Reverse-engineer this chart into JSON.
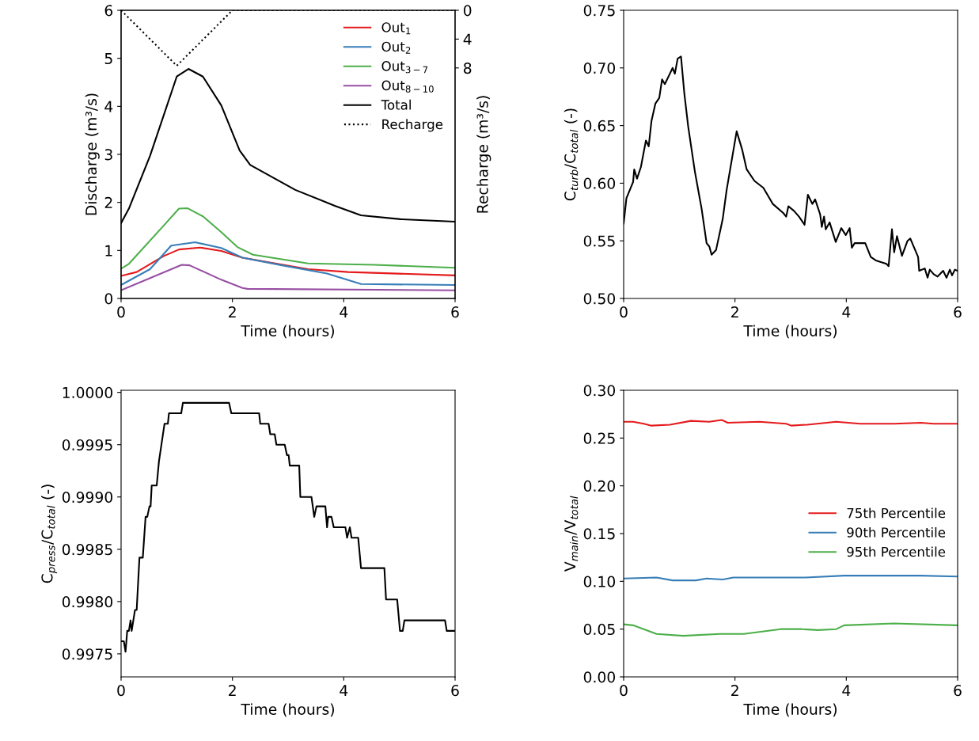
{
  "chart_data": [
    {
      "type": "line",
      "xlabel": "Time (hours)",
      "ylabel": "Discharge (m³/s)",
      "y2label": "Recharge (m³/s)",
      "xlim": [
        0,
        6
      ],
      "xticks": [
        0,
        2,
        4,
        6
      ],
      "ylim": [
        0,
        6
      ],
      "yticks": [
        0,
        1,
        2,
        3,
        4,
        5,
        6
      ],
      "y2lim": [
        40,
        0
      ],
      "y2ticks": [
        0,
        4,
        8
      ],
      "legend": "top right",
      "grid": false,
      "series": [
        {
          "name": "Out$_{1}$",
          "color": "#e41a1c",
          "x": [
            0,
            0.28,
            0.76,
            1.04,
            1.42,
            1.8,
            2.18,
            3.36,
            4.08,
            6
          ],
          "values": [
            0.47,
            0.55,
            0.88,
            1.02,
            1.06,
            0.99,
            0.85,
            0.61,
            0.55,
            0.48
          ]
        },
        {
          "name": "Out$_{2}$",
          "color": "#377eb8",
          "x": [
            0,
            0.52,
            0.9,
            1.33,
            1.8,
            2.18,
            2.89,
            3.7,
            4.31,
            6
          ],
          "values": [
            0.28,
            0.61,
            1.1,
            1.17,
            1.05,
            0.85,
            0.69,
            0.52,
            0.3,
            0.28
          ]
        },
        {
          "name": "Out$_{3−7}$",
          "color": "#4daf4a",
          "x": [
            0,
            0.14,
            0.76,
            1.04,
            1.19,
            1.47,
            1.8,
            2.09,
            2.37,
            3.36,
            4.55,
            6
          ],
          "values": [
            0.62,
            0.72,
            1.51,
            1.87,
            1.88,
            1.71,
            1.38,
            1.07,
            0.91,
            0.73,
            0.7,
            0.64
          ]
        },
        {
          "name": "Out$_{8−10}$",
          "color": "#984ea3",
          "x": [
            0,
            1.09,
            1.23,
            1.8,
            2.18,
            2.27,
            6
          ],
          "values": [
            0.17,
            0.7,
            0.69,
            0.39,
            0.22,
            0.2,
            0.17
          ]
        },
        {
          "name": "Total",
          "color": "#000000",
          "x": [
            0,
            0.14,
            0.52,
            1.0,
            1.21,
            1.47,
            1.8,
            2.13,
            2.32,
            3.13,
            3.84,
            4.31,
            5.02,
            6
          ],
          "values": [
            1.57,
            1.87,
            2.97,
            4.62,
            4.78,
            4.62,
            4.02,
            3.08,
            2.78,
            2.26,
            1.93,
            1.73,
            1.65,
            1.6
          ]
        },
        {
          "name": "Recharge",
          "color": "#000000",
          "axis": "y2",
          "line_style": "dotted",
          "x": [
            0,
            1,
            2,
            6
          ],
          "values": [
            0,
            7.7,
            0,
            0
          ]
        }
      ]
    },
    {
      "type": "line",
      "xlabel": "Time (hours)",
      "ylabel": "C$_{turb}$/C$_{total}$ (-)",
      "xlim": [
        0,
        6
      ],
      "xticks": [
        0,
        2,
        4,
        6
      ],
      "ylim": [
        0.5,
        0.75
      ],
      "yticks": [
        {
          "value": 0.5,
          "label": "0.50"
        },
        {
          "value": 0.55,
          "label": "0.55"
        },
        {
          "value": 0.6,
          "label": "0.60"
        },
        {
          "value": 0.65,
          "label": "0.65"
        },
        {
          "value": 0.7,
          "label": "0.70"
        },
        {
          "value": 0.75,
          "label": "0.75"
        }
      ],
      "grid": false,
      "series": [
        {
          "color": "#000000",
          "x": [
            0,
            0.05,
            0.17,
            0.19,
            0.24,
            0.31,
            0.4,
            0.45,
            0.5,
            0.57,
            0.64,
            0.69,
            0.74,
            0.83,
            0.88,
            0.92,
            0.97,
            1.03,
            1.09,
            1.16,
            1.28,
            1.4,
            1.49,
            1.54,
            1.58,
            1.66,
            1.78,
            1.85,
            1.97,
            2.03,
            2.13,
            2.21,
            2.35,
            2.51,
            2.68,
            2.87,
            2.92,
            2.96,
            3.06,
            3.15,
            3.25,
            3.31,
            3.39,
            3.44,
            3.53,
            3.56,
            3.6,
            3.63,
            3.7,
            3.81,
            3.91,
            3.99,
            4.06,
            4.1,
            4.15,
            4.34,
            4.44,
            4.53,
            4.72,
            4.76,
            4.82,
            4.86,
            4.91,
            5.0,
            5.1,
            5.15,
            5.29,
            5.31,
            5.41,
            5.46,
            5.5,
            5.57,
            5.64,
            5.74,
            5.8,
            5.86,
            5.9,
            5.95,
            6
          ],
          "values": [
            0.565,
            0.587,
            0.601,
            0.612,
            0.604,
            0.614,
            0.637,
            0.632,
            0.654,
            0.669,
            0.674,
            0.69,
            0.686,
            0.695,
            0.7,
            0.695,
            0.708,
            0.71,
            0.678,
            0.649,
            0.61,
            0.578,
            0.548,
            0.545,
            0.538,
            0.542,
            0.569,
            0.594,
            0.628,
            0.645,
            0.629,
            0.612,
            0.602,
            0.596,
            0.582,
            0.574,
            0.571,
            0.58,
            0.576,
            0.571,
            0.564,
            0.59,
            0.582,
            0.586,
            0.573,
            0.562,
            0.571,
            0.56,
            0.566,
            0.549,
            0.561,
            0.555,
            0.561,
            0.544,
            0.548,
            0.548,
            0.536,
            0.533,
            0.53,
            0.528,
            0.56,
            0.54,
            0.554,
            0.537,
            0.55,
            0.552,
            0.536,
            0.524,
            0.526,
            0.518,
            0.525,
            0.521,
            0.519,
            0.524,
            0.518,
            0.525,
            0.52,
            0.525,
            0.524
          ]
        }
      ]
    },
    {
      "type": "line",
      "xlabel": "Time (hours)",
      "ylabel": "C$_{press}$/C$_{total}$ (-)",
      "xlim": [
        0,
        6
      ],
      "xticks": [
        0,
        2,
        4,
        6
      ],
      "ylim": [
        0.99728,
        1.00002
      ],
      "yticks": [
        {
          "value": 0.9975,
          "label": "0.9975"
        },
        {
          "value": 0.998,
          "label": "0.9980"
        },
        {
          "value": 0.9985,
          "label": "0.9985"
        },
        {
          "value": 0.999,
          "label": "0.9990"
        },
        {
          "value": 0.9995,
          "label": "0.9995"
        },
        {
          "value": 1.0,
          "label": "1.0000"
        }
      ],
      "grid": false,
      "series": [
        {
          "color": "#000000",
          "x": [
            0,
            0.05,
            0.08,
            0.11,
            0.14,
            0.17,
            0.19,
            0.25,
            0.28,
            0.33,
            0.39,
            0.44,
            0.47,
            0.51,
            0.53,
            0.55,
            0.64,
            0.68,
            0.78,
            0.84,
            0.86,
            1.08,
            1.11,
            1.94,
            1.98,
            2.48,
            2.5,
            2.65,
            2.68,
            2.76,
            2.79,
            2.94,
            2.98,
            3.01,
            3.03,
            3.2,
            3.22,
            3.42,
            3.47,
            3.51,
            3.67,
            3.7,
            3.72,
            3.78,
            3.82,
            4.03,
            4.06,
            4.11,
            4.14,
            4.26,
            4.31,
            4.73,
            4.76,
            4.96,
            5.01,
            5.06,
            5.09,
            5.82,
            5.85,
            6
          ],
          "values": [
            0.99762,
            0.99762,
            0.99752,
            0.99772,
            0.99772,
            0.99782,
            0.99772,
            0.99792,
            0.99792,
            0.99842,
            0.99842,
            0.99881,
            0.99881,
            0.99891,
            0.99891,
            0.99911,
            0.99911,
            0.99934,
            0.9997,
            0.9997,
            0.9998,
            0.9998,
            0.9999,
            0.9999,
            0.9998,
            0.9998,
            0.9997,
            0.9997,
            0.9996,
            0.9996,
            0.9995,
            0.9995,
            0.9994,
            0.9994,
            0.9993,
            0.9993,
            0.999,
            0.999,
            0.99881,
            0.99891,
            0.99891,
            0.99871,
            0.99881,
            0.99881,
            0.99871,
            0.99871,
            0.99861,
            0.99871,
            0.99861,
            0.99861,
            0.99832,
            0.99832,
            0.99802,
            0.99802,
            0.99772,
            0.99772,
            0.99782,
            0.99782,
            0.99772,
            0.99772
          ]
        }
      ]
    },
    {
      "type": "line",
      "xlabel": "Time (hours)",
      "ylabel": "V$_{main}$/V$_{total}$",
      "xlim": [
        0,
        6
      ],
      "xticks": [
        0,
        2,
        4,
        6
      ],
      "ylim": [
        0,
        0.3
      ],
      "yticks": [
        {
          "value": 0,
          "label": "0.00"
        },
        {
          "value": 0.05,
          "label": "0.05"
        },
        {
          "value": 0.1,
          "label": "0.10"
        },
        {
          "value": 0.15,
          "label": "0.15"
        },
        {
          "value": 0.2,
          "label": "0.20"
        },
        {
          "value": 0.25,
          "label": "0.25"
        },
        {
          "value": 0.3,
          "label": "0.30"
        }
      ],
      "legend": "right",
      "grid": false,
      "series": [
        {
          "name": "75th Percentile",
          "color": "#e41a1c",
          "x": [
            0,
            0.17,
            0.36,
            0.5,
            0.83,
            1.21,
            1.54,
            1.76,
            1.87,
            2.44,
            2.92,
            3.01,
            3.3,
            3.82,
            4.25,
            4.86,
            5.34,
            5.57,
            6
          ],
          "values": [
            0.267,
            0.267,
            0.265,
            0.263,
            0.264,
            0.268,
            0.267,
            0.269,
            0.266,
            0.267,
            0.265,
            0.263,
            0.264,
            0.267,
            0.265,
            0.265,
            0.266,
            0.265,
            0.265
          ]
        },
        {
          "name": "90th Percentile",
          "color": "#377eb8",
          "x": [
            0,
            0.59,
            0.88,
            1.3,
            1.49,
            1.78,
            1.97,
            3.27,
            3.96,
            4.35,
            5.34,
            6
          ],
          "values": [
            0.103,
            0.104,
            0.101,
            0.101,
            0.103,
            0.102,
            0.104,
            0.104,
            0.106,
            0.106,
            0.106,
            0.105
          ]
        },
        {
          "name": "95th Percentile",
          "color": "#4daf4a",
          "x": [
            0,
            0.17,
            0.36,
            0.59,
            1.07,
            1.73,
            2.16,
            2.82,
            3.2,
            3.49,
            3.82,
            3.96,
            4.86,
            6
          ],
          "values": [
            0.055,
            0.054,
            0.05,
            0.045,
            0.043,
            0.045,
            0.045,
            0.05,
            0.05,
            0.049,
            0.05,
            0.054,
            0.056,
            0.054
          ]
        }
      ]
    }
  ]
}
